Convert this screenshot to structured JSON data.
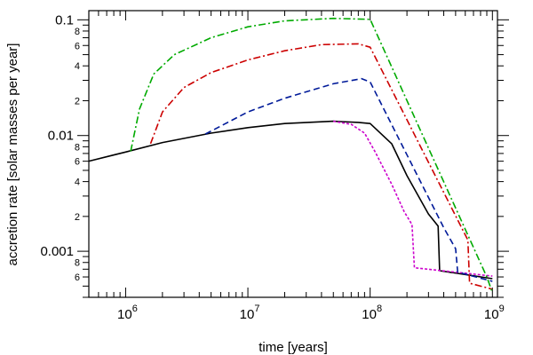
{
  "chart_data": {
    "type": "line",
    "title": "",
    "xlabel": "time [years]",
    "ylabel": "accretion rate [solar masses per year]",
    "x_scale": "log",
    "y_scale": "log",
    "xlim": [
      500000,
      1100000000
    ],
    "ylim": [
      0.0004,
      0.12
    ],
    "grid": false,
    "legend": "none",
    "x_major_ticks": [
      {
        "value": 1000000,
        "base": "10",
        "exp": "6"
      },
      {
        "value": 10000000,
        "base": "10",
        "exp": "7"
      },
      {
        "value": 100000000,
        "base": "10",
        "exp": "8"
      },
      {
        "value": 1000000000,
        "base": "10",
        "exp": "9"
      }
    ],
    "y_major_ticks": [
      {
        "value": 0.001,
        "label": "0.001"
      },
      {
        "value": 0.01,
        "label": "0.01"
      },
      {
        "value": 0.1,
        "label": "0.1"
      }
    ],
    "y_minor_labels": [
      {
        "value": 0.0006,
        "label": "6"
      },
      {
        "value": 0.0008,
        "label": "8"
      },
      {
        "value": 0.002,
        "label": "2"
      },
      {
        "value": 0.004,
        "label": "4"
      },
      {
        "value": 0.006,
        "label": "6"
      },
      {
        "value": 0.008,
        "label": "8"
      },
      {
        "value": 0.02,
        "label": "2"
      },
      {
        "value": 0.04,
        "label": "4"
      },
      {
        "value": 0.06,
        "label": "6"
      },
      {
        "value": 0.08,
        "label": "8"
      }
    ],
    "series": [
      {
        "color": "#000000",
        "dash": "solid",
        "points": [
          [
            500000,
            0.006
          ],
          [
            1000000,
            0.0072
          ],
          [
            2000000,
            0.0087
          ],
          [
            5000000,
            0.0105
          ],
          [
            10000000,
            0.0117
          ],
          [
            20000000,
            0.0127
          ],
          [
            50000000,
            0.0133
          ],
          [
            80000000,
            0.013
          ],
          [
            100000000,
            0.0127
          ],
          [
            150000000,
            0.0085
          ],
          [
            200000000,
            0.0045
          ],
          [
            300000000,
            0.0021
          ],
          [
            360000000,
            0.00165
          ],
          [
            370000000,
            0.00068
          ],
          [
            1000000000,
            0.00058
          ]
        ]
      },
      {
        "color": "#cc00cc",
        "dash": "short-dash",
        "points": [
          [
            50000000,
            0.0133
          ],
          [
            70000000,
            0.0125
          ],
          [
            90000000,
            0.0105
          ],
          [
            110000000,
            0.0072
          ],
          [
            150000000,
            0.0038
          ],
          [
            190000000,
            0.0022
          ],
          [
            220000000,
            0.0017
          ],
          [
            230000000,
            0.00072
          ],
          [
            1000000000,
            0.00061
          ]
        ]
      },
      {
        "color": "#001a99",
        "dash": "dash",
        "points": [
          [
            4500000,
            0.0103
          ],
          [
            10000000,
            0.016
          ],
          [
            20000000,
            0.021
          ],
          [
            50000000,
            0.028
          ],
          [
            85000000,
            0.031
          ],
          [
            100000000,
            0.029
          ],
          [
            400000000,
            0.0016
          ],
          [
            500000000,
            0.00105
          ],
          [
            520000000,
            0.00066
          ],
          [
            1000000000,
            0.00055
          ]
        ]
      },
      {
        "color": "#cc0000",
        "dash": "dash-dot",
        "points": [
          [
            1600000,
            0.0085
          ],
          [
            2000000,
            0.016
          ],
          [
            3000000,
            0.026
          ],
          [
            5000000,
            0.035
          ],
          [
            10000000,
            0.045
          ],
          [
            20000000,
            0.054
          ],
          [
            40000000,
            0.061
          ],
          [
            80000000,
            0.062
          ],
          [
            100000000,
            0.058
          ],
          [
            630000000,
            0.00125
          ],
          [
            650000000,
            0.00053
          ],
          [
            1000000000,
            0.00047
          ]
        ]
      },
      {
        "color": "#00aa00",
        "dash": "dash-dot",
        "points": [
          [
            1100000,
            0.0073
          ],
          [
            1300000,
            0.017
          ],
          [
            1700000,
            0.034
          ],
          [
            2500000,
            0.05
          ],
          [
            5000000,
            0.07
          ],
          [
            10000000,
            0.087
          ],
          [
            20000000,
            0.098
          ],
          [
            50000000,
            0.103
          ],
          [
            100000000,
            0.101
          ],
          [
            900000000,
            0.0006
          ],
          [
            1000000000,
            0.00044
          ]
        ]
      }
    ]
  }
}
